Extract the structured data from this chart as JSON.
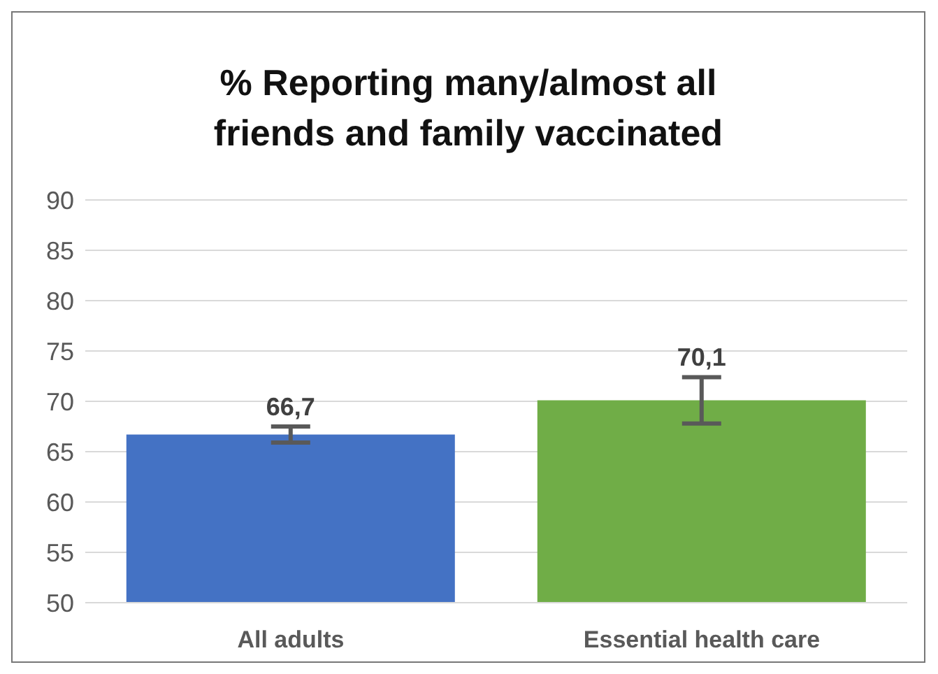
{
  "chart_data": {
    "type": "bar",
    "title": "% Reporting many/almost all friends and family vaccinated",
    "categories": [
      "All adults",
      "Essential health care"
    ],
    "values": [
      66.7,
      70.1
    ],
    "colors": [
      "#4472c4",
      "#70ad47"
    ],
    "errors": [
      0.8,
      2.3
    ],
    "value_labels": [
      "66,7",
      "70,1"
    ],
    "ylim": [
      50,
      90
    ],
    "yticks": [
      50,
      55,
      60,
      65,
      70,
      75,
      80,
      85,
      90
    ],
    "grid": "y"
  }
}
